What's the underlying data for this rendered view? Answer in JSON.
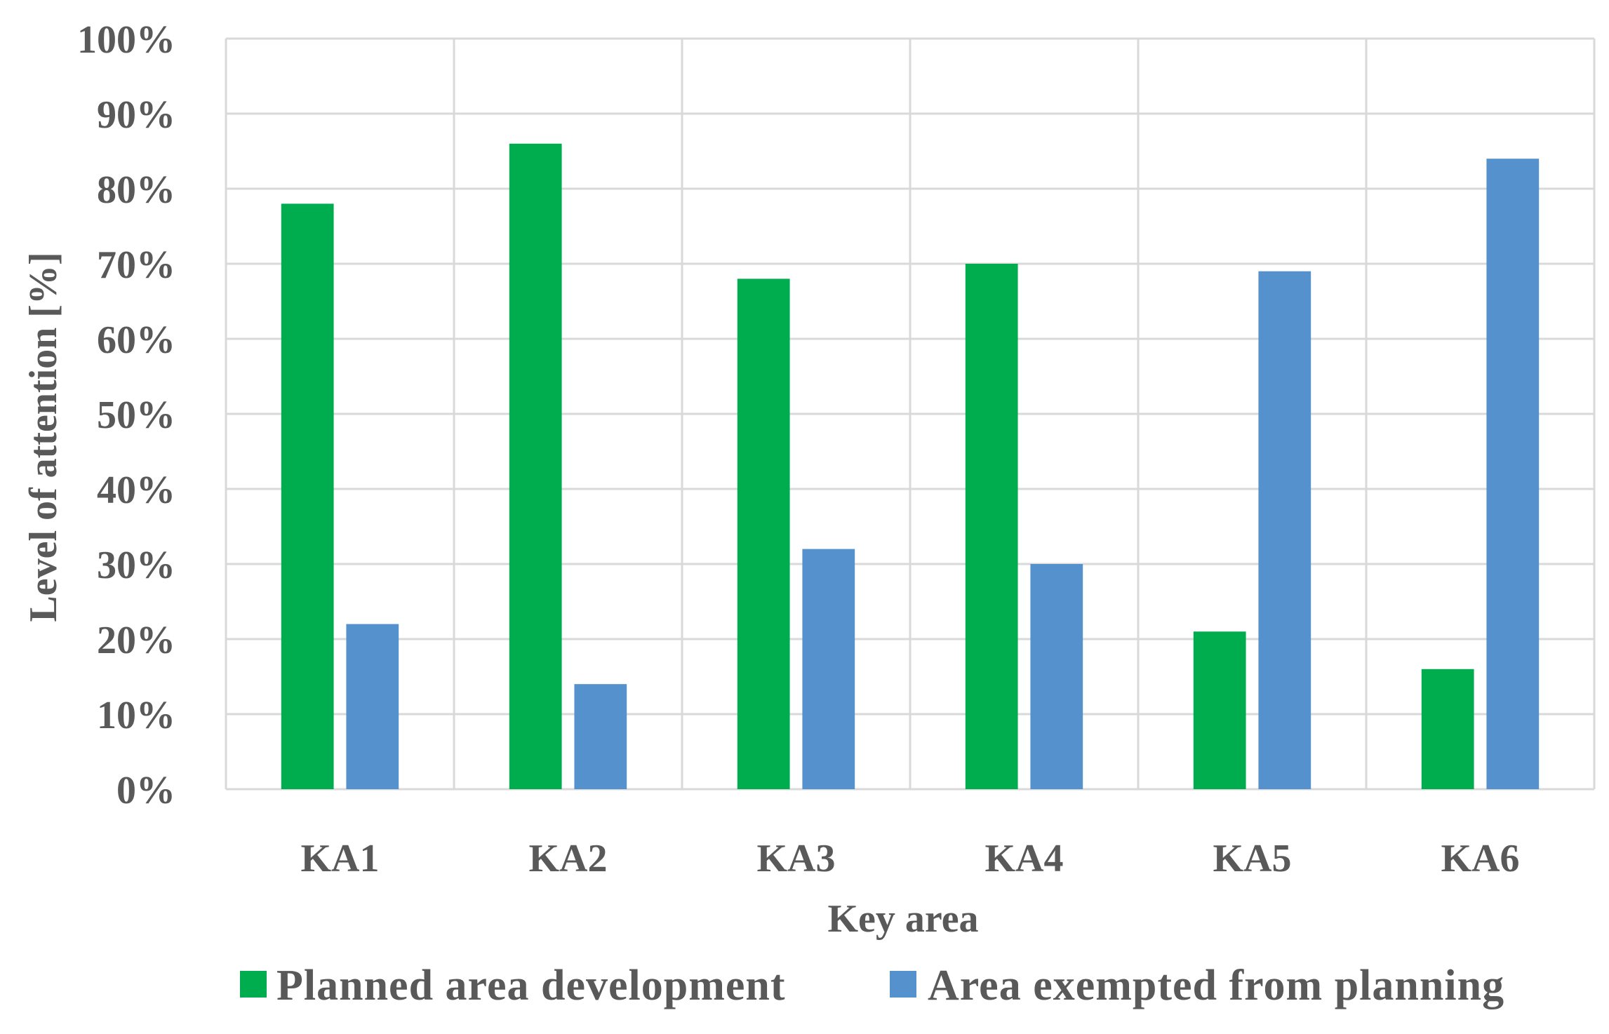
{
  "chart_data": {
    "type": "bar",
    "title": "",
    "xlabel": "Key area",
    "ylabel": "Level of attention [%]",
    "categories": [
      "KA1",
      "KA2",
      "KA3",
      "KA4",
      "KA5",
      "KA6"
    ],
    "series": [
      {
        "name": "Planned area development",
        "color": "#00AD4E",
        "values": [
          78,
          86,
          68,
          70,
          21,
          16
        ]
      },
      {
        "name": "Area exempted from planning",
        "color": "#5591CC",
        "values": [
          22,
          14,
          32,
          30,
          69,
          84
        ]
      }
    ],
    "ylim": [
      0,
      100
    ],
    "yticks": [
      "0%",
      "10%",
      "20%",
      "30%",
      "40%",
      "50%",
      "60%",
      "70%",
      "80%",
      "90%",
      "100%"
    ],
    "grid": true,
    "legend_position": "bottom"
  }
}
